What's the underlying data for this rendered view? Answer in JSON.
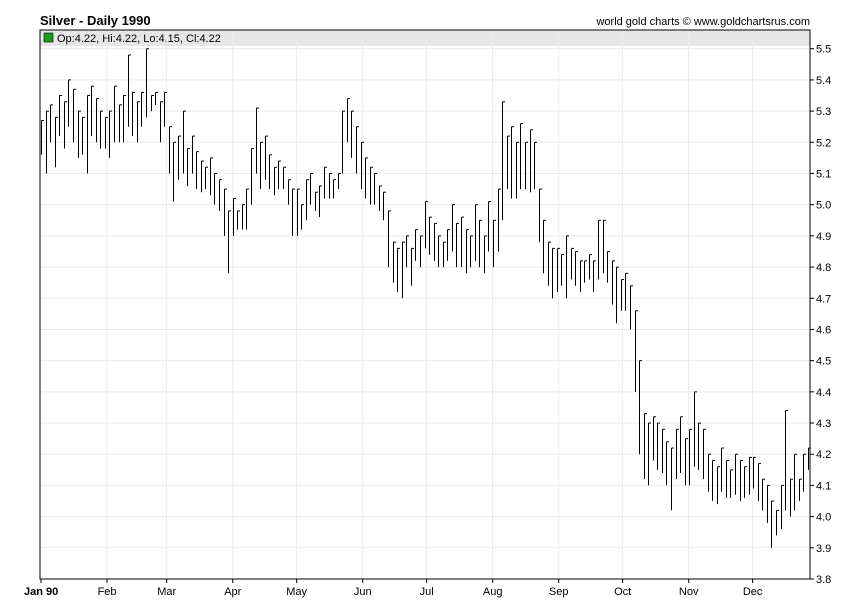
{
  "header": {
    "title": "Silver - Daily 1990",
    "credit": "world gold charts © www.goldchartsrus.com",
    "ohlc_text": "Op:4.22, Hi:4.22, Lo:4.15, Cl:4.22",
    "ohlc_marker_color": "#1e9c1e"
  },
  "chart_data": {
    "type": "ohlc-bar",
    "title": "Silver - Daily 1990",
    "ylim": [
      3.8,
      5.56
    ],
    "yticks": [
      3.8,
      3.9,
      4.0,
      4.1,
      4.2,
      4.3,
      4.4,
      4.5,
      4.6,
      4.7,
      4.8,
      4.9,
      5.0,
      5.1,
      5.2,
      5.3,
      5.4,
      5.5
    ],
    "ytick_labels": [
      "3.8",
      "3.9",
      "4.0",
      "4.1",
      "4.2",
      "4.3",
      "4.4",
      "4.5",
      "4.6",
      "4.7",
      "4.8",
      "4.9",
      "5.0",
      "5.1",
      "5.2",
      "5.3",
      "5.4",
      "5.5"
    ],
    "xtick_labels": [
      "Jan 90",
      "Feb",
      "Mar",
      "Apr",
      "May",
      "Jun",
      "Jul",
      "Aug",
      "Sep",
      "Oct",
      "Nov",
      "Dec"
    ],
    "grid": true,
    "line_color": "#000000",
    "grid_color": "#e6ebeb",
    "last_bar": {
      "open": 4.22,
      "high": 4.22,
      "low": 4.15,
      "close": 4.22
    },
    "bars": [
      {
        "h": 5.27,
        "l": 5.16
      },
      {
        "h": 5.3,
        "l": 5.1
      },
      {
        "h": 5.32,
        "l": 5.2
      },
      {
        "h": 5.28,
        "l": 5.12
      },
      {
        "h": 5.35,
        "l": 5.22
      },
      {
        "h": 5.33,
        "l": 5.18
      },
      {
        "h": 5.4,
        "l": 5.25
      },
      {
        "h": 5.37,
        "l": 5.2
      },
      {
        "h": 5.3,
        "l": 5.15
      },
      {
        "h": 5.28,
        "l": 5.16
      },
      {
        "h": 5.35,
        "l": 5.1
      },
      {
        "h": 5.38,
        "l": 5.22
      },
      {
        "h": 5.34,
        "l": 5.2
      },
      {
        "h": 5.3,
        "l": 5.18
      },
      {
        "h": 5.28,
        "l": 5.18
      },
      {
        "h": 5.3,
        "l": 5.15
      },
      {
        "h": 5.38,
        "l": 5.2
      },
      {
        "h": 5.32,
        "l": 5.2
      },
      {
        "h": 5.35,
        "l": 5.2
      },
      {
        "h": 5.48,
        "l": 5.25
      },
      {
        "h": 5.36,
        "l": 5.22
      },
      {
        "h": 5.33,
        "l": 5.2
      },
      {
        "h": 5.36,
        "l": 5.25
      },
      {
        "h": 5.5,
        "l": 5.28
      },
      {
        "h": 5.35,
        "l": 5.3
      },
      {
        "h": 5.36,
        "l": 5.32
      },
      {
        "h": 5.33,
        "l": 5.2
      },
      {
        "h": 5.36,
        "l": 5.25
      },
      {
        "h": 5.25,
        "l": 5.1
      },
      {
        "h": 5.2,
        "l": 5.01
      },
      {
        "h": 5.22,
        "l": 5.08
      },
      {
        "h": 5.3,
        "l": 5.1
      },
      {
        "h": 5.18,
        "l": 5.06
      },
      {
        "h": 5.22,
        "l": 5.1
      },
      {
        "h": 5.17,
        "l": 5.05
      },
      {
        "h": 5.14,
        "l": 5.04
      },
      {
        "h": 5.12,
        "l": 5.05
      },
      {
        "h": 5.15,
        "l": 5.03
      },
      {
        "h": 5.1,
        "l": 5.0
      },
      {
        "h": 5.08,
        "l": 4.98
      },
      {
        "h": 5.05,
        "l": 4.9
      },
      {
        "h": 4.98,
        "l": 4.78
      },
      {
        "h": 5.02,
        "l": 4.9
      },
      {
        "h": 4.98,
        "l": 4.92
      },
      {
        "h": 5.0,
        "l": 4.92
      },
      {
        "h": 5.05,
        "l": 4.92
      },
      {
        "h": 5.18,
        "l": 5.0
      },
      {
        "h": 5.31,
        "l": 5.1
      },
      {
        "h": 5.2,
        "l": 5.05
      },
      {
        "h": 5.22,
        "l": 5.08
      },
      {
        "h": 5.16,
        "l": 5.05
      },
      {
        "h": 5.12,
        "l": 5.03
      },
      {
        "h": 5.14,
        "l": 5.05
      },
      {
        "h": 5.12,
        "l": 5.05
      },
      {
        "h": 5.08,
        "l": 5.0
      },
      {
        "h": 5.05,
        "l": 4.9
      },
      {
        "h": 5.05,
        "l": 4.9
      },
      {
        "h": 5.0,
        "l": 4.92
      },
      {
        "h": 5.08,
        "l": 4.95
      },
      {
        "h": 5.1,
        "l": 5.0
      },
      {
        "h": 5.04,
        "l": 4.98
      },
      {
        "h": 5.06,
        "l": 4.96
      },
      {
        "h": 5.12,
        "l": 5.02
      },
      {
        "h": 5.1,
        "l": 5.02
      },
      {
        "h": 5.08,
        "l": 5.02
      },
      {
        "h": 5.1,
        "l": 5.05
      },
      {
        "h": 5.3,
        "l": 5.1
      },
      {
        "h": 5.34,
        "l": 5.2
      },
      {
        "h": 5.3,
        "l": 5.15
      },
      {
        "h": 5.25,
        "l": 5.1
      },
      {
        "h": 5.2,
        "l": 5.05
      },
      {
        "h": 5.15,
        "l": 5.02
      },
      {
        "h": 5.12,
        "l": 5.0
      },
      {
        "h": 5.1,
        "l": 5.0
      },
      {
        "h": 5.06,
        "l": 4.98
      },
      {
        "h": 5.04,
        "l": 4.95
      },
      {
        "h": 4.98,
        "l": 4.8
      },
      {
        "h": 4.88,
        "l": 4.75
      },
      {
        "h": 4.86,
        "l": 4.72
      },
      {
        "h": 4.88,
        "l": 4.7
      },
      {
        "h": 4.9,
        "l": 4.8
      },
      {
        "h": 4.86,
        "l": 4.74
      },
      {
        "h": 4.92,
        "l": 4.82
      },
      {
        "h": 4.9,
        "l": 4.8
      },
      {
        "h": 5.01,
        "l": 4.86
      },
      {
        "h": 4.96,
        "l": 4.84
      },
      {
        "h": 4.94,
        "l": 4.82
      },
      {
        "h": 4.9,
        "l": 4.8
      },
      {
        "h": 4.88,
        "l": 4.8
      },
      {
        "h": 4.92,
        "l": 4.82
      },
      {
        "h": 5.0,
        "l": 4.85
      },
      {
        "h": 4.94,
        "l": 4.8
      },
      {
        "h": 4.96,
        "l": 4.8
      },
      {
        "h": 4.92,
        "l": 4.78
      },
      {
        "h": 4.9,
        "l": 4.8
      },
      {
        "h": 5.0,
        "l": 4.82
      },
      {
        "h": 4.95,
        "l": 4.8
      },
      {
        "h": 4.9,
        "l": 4.78
      },
      {
        "h": 5.01,
        "l": 4.85
      },
      {
        "h": 4.95,
        "l": 4.8
      },
      {
        "h": 5.05,
        "l": 4.85
      },
      {
        "h": 5.33,
        "l": 4.95
      },
      {
        "h": 5.22,
        "l": 5.05
      },
      {
        "h": 5.25,
        "l": 5.02
      },
      {
        "h": 5.2,
        "l": 5.02
      },
      {
        "h": 5.26,
        "l": 5.05
      },
      {
        "h": 5.2,
        "l": 5.05
      },
      {
        "h": 5.24,
        "l": 5.04
      },
      {
        "h": 5.2,
        "l": 5.05
      },
      {
        "h": 5.05,
        "l": 4.88
      },
      {
        "h": 4.95,
        "l": 4.78
      },
      {
        "h": 4.88,
        "l": 4.74
      },
      {
        "h": 4.86,
        "l": 4.7
      },
      {
        "h": 4.86,
        "l": 4.72
      },
      {
        "h": 4.84,
        "l": 4.74
      },
      {
        "h": 4.9,
        "l": 4.7
      },
      {
        "h": 4.86,
        "l": 4.76
      },
      {
        "h": 4.85,
        "l": 4.74
      },
      {
        "h": 4.82,
        "l": 4.72
      },
      {
        "h": 4.82,
        "l": 4.75
      },
      {
        "h": 4.84,
        "l": 4.76
      },
      {
        "h": 4.82,
        "l": 4.72
      },
      {
        "h": 4.95,
        "l": 4.76
      },
      {
        "h": 4.95,
        "l": 4.78
      },
      {
        "h": 4.85,
        "l": 4.75
      },
      {
        "h": 4.82,
        "l": 4.68
      },
      {
        "h": 4.8,
        "l": 4.62
      },
      {
        "h": 4.76,
        "l": 4.66
      },
      {
        "h": 4.78,
        "l": 4.66
      },
      {
        "h": 4.74,
        "l": 4.6
      },
      {
        "h": 4.66,
        "l": 4.4
      },
      {
        "h": 4.5,
        "l": 4.2
      },
      {
        "h": 4.33,
        "l": 4.12
      },
      {
        "h": 4.3,
        "l": 4.1
      },
      {
        "h": 4.32,
        "l": 4.18
      },
      {
        "h": 4.3,
        "l": 4.15
      },
      {
        "h": 4.28,
        "l": 4.14
      },
      {
        "h": 4.24,
        "l": 4.1
      },
      {
        "h": 4.22,
        "l": 4.02
      },
      {
        "h": 4.28,
        "l": 4.12
      },
      {
        "h": 4.32,
        "l": 4.14
      },
      {
        "h": 4.25,
        "l": 4.1
      },
      {
        "h": 4.28,
        "l": 4.1
      },
      {
        "h": 4.4,
        "l": 4.16
      },
      {
        "h": 4.3,
        "l": 4.15
      },
      {
        "h": 4.28,
        "l": 4.12
      },
      {
        "h": 4.2,
        "l": 4.08
      },
      {
        "h": 4.18,
        "l": 4.05
      },
      {
        "h": 4.16,
        "l": 4.04
      },
      {
        "h": 4.22,
        "l": 4.08
      },
      {
        "h": 4.18,
        "l": 4.06
      },
      {
        "h": 4.15,
        "l": 4.06
      },
      {
        "h": 4.2,
        "l": 4.07
      },
      {
        "h": 4.18,
        "l": 4.05
      },
      {
        "h": 4.16,
        "l": 4.06
      },
      {
        "h": 4.19,
        "l": 4.07
      },
      {
        "h": 4.19,
        "l": 4.09
      },
      {
        "h": 4.17,
        "l": 4.05
      },
      {
        "h": 4.12,
        "l": 4.02
      },
      {
        "h": 4.1,
        "l": 3.98
      },
      {
        "h": 4.05,
        "l": 3.9
      },
      {
        "h": 4.02,
        "l": 3.94
      },
      {
        "h": 4.1,
        "l": 3.96
      },
      {
        "h": 4.34,
        "l": 4.02
      },
      {
        "h": 4.12,
        "l": 4.0
      },
      {
        "h": 4.2,
        "l": 4.02
      },
      {
        "h": 4.12,
        "l": 4.05
      },
      {
        "h": 4.2,
        "l": 4.08
      },
      {
        "h": 4.22,
        "l": 4.15
      }
    ]
  }
}
